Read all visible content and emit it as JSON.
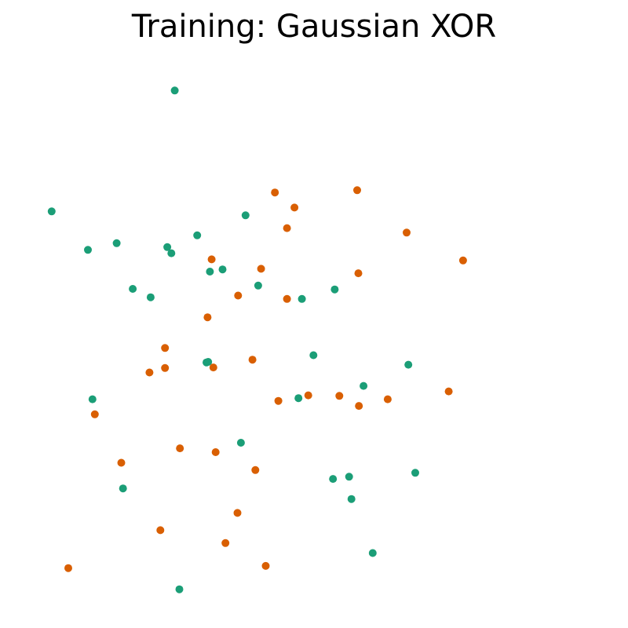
{
  "chart_data": {
    "type": "scatter",
    "title": "Training: Gaussian XOR",
    "xlabel": "",
    "ylabel": "",
    "xlim": [
      0,
      100
    ],
    "ylim": [
      0,
      100
    ],
    "grid": false,
    "axes_visible": false,
    "series": [
      {
        "color": "#1b9e77",
        "points": [
          [
            25.6,
            92.5
          ],
          [
            4.2,
            70.8
          ],
          [
            37.9,
            70.1
          ],
          [
            29.5,
            66.5
          ],
          [
            10.5,
            63.9
          ],
          [
            15.5,
            65.1
          ],
          [
            24.3,
            64.4
          ],
          [
            25.0,
            63.3
          ],
          [
            31.7,
            60.0
          ],
          [
            33.9,
            60.4
          ],
          [
            40.1,
            57.5
          ],
          [
            18.3,
            56.9
          ],
          [
            21.4,
            55.4
          ],
          [
            47.7,
            55.1
          ],
          [
            53.4,
            56.8
          ],
          [
            49.7,
            45.0
          ],
          [
            31.1,
            43.7
          ],
          [
            31.4,
            43.8
          ],
          [
            66.2,
            43.3
          ],
          [
            11.3,
            37.1
          ],
          [
            58.4,
            39.5
          ],
          [
            47.1,
            37.3
          ],
          [
            37.1,
            29.3
          ],
          [
            53.1,
            22.8
          ],
          [
            55.9,
            23.2
          ],
          [
            67.4,
            23.9
          ],
          [
            16.6,
            21.1
          ],
          [
            56.3,
            19.2
          ],
          [
            60.0,
            9.5
          ],
          [
            26.4,
            3.0
          ]
        ]
      },
      {
        "color": "#d95f02",
        "points": [
          [
            57.3,
            74.6
          ],
          [
            43.0,
            74.2
          ],
          [
            46.4,
            71.5
          ],
          [
            45.1,
            67.8
          ],
          [
            65.9,
            67.0
          ],
          [
            75.7,
            62.0
          ],
          [
            32.0,
            62.2
          ],
          [
            40.6,
            60.5
          ],
          [
            57.5,
            59.7
          ],
          [
            36.6,
            55.7
          ],
          [
            45.1,
            55.1
          ],
          [
            31.3,
            51.8
          ],
          [
            23.9,
            46.3
          ],
          [
            39.1,
            44.2
          ],
          [
            32.3,
            42.8
          ],
          [
            23.9,
            42.7
          ],
          [
            21.2,
            41.9
          ],
          [
            73.2,
            38.5
          ],
          [
            48.8,
            37.8
          ],
          [
            54.2,
            37.7
          ],
          [
            62.6,
            37.1
          ],
          [
            57.6,
            35.9
          ],
          [
            43.6,
            36.8
          ],
          [
            11.7,
            34.4
          ],
          [
            26.5,
            28.3
          ],
          [
            32.7,
            27.6
          ],
          [
            16.3,
            25.7
          ],
          [
            39.6,
            24.4
          ],
          [
            36.5,
            16.7
          ],
          [
            23.1,
            13.6
          ],
          [
            34.4,
            11.3
          ],
          [
            7.1,
            6.8
          ],
          [
            41.4,
            7.2
          ]
        ]
      }
    ]
  }
}
